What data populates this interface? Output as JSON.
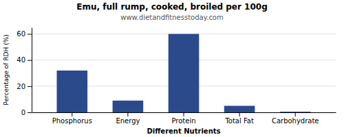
{
  "chart_data": {
    "type": "bar",
    "title": "Emu, full rump, cooked, broiled per 100g",
    "subtitle": "www.dietandfitnesstoday.com",
    "xlabel": "Different Nutrients",
    "ylabel": "Percentage of RDH (%)",
    "categories": [
      "Phosphorus",
      "Energy",
      "Protein",
      "Total Fat",
      "Carbohydrate"
    ],
    "values": [
      32,
      9,
      60,
      5,
      0.5
    ],
    "color": "#2b4a8b",
    "ylim": [
      0,
      65
    ],
    "yticks": [
      0,
      20,
      40,
      60
    ],
    "grid": true
  }
}
